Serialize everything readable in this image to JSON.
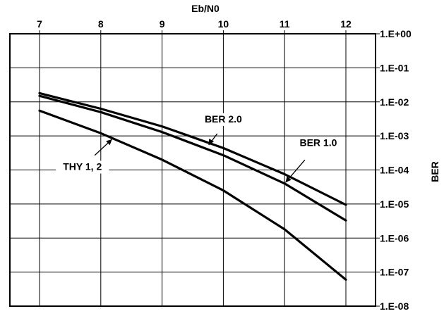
{
  "chart_data": {
    "type": "line",
    "xlabel": "Eb/N0",
    "ylabel": "BER",
    "x_ticks": [
      "7",
      "8",
      "9",
      "10",
      "11",
      "12"
    ],
    "y_ticks": [
      "1.E+00",
      "1.E-01",
      "1.E-02",
      "1.E-03",
      "1.E-04",
      "1.E-05",
      "1.E-06",
      "1.E-07",
      "1.E-08"
    ],
    "xlim": [
      7,
      12
    ],
    "ylim": [
      1e-08,
      1
    ],
    "y_scale": "log",
    "x_axis_position": "top",
    "y_axis_position": "right",
    "grid": true,
    "series": [
      {
        "name": "BER 2.0",
        "x": [
          7,
          8,
          9,
          10,
          11,
          12
        ],
        "y": [
          0.018,
          0.0063,
          0.0019,
          0.00044,
          7.5e-05,
          9.5e-06
        ]
      },
      {
        "name": "BER 1.0",
        "x": [
          7,
          8,
          9,
          10,
          11,
          12
        ],
        "y": [
          0.015,
          0.005,
          0.0013,
          0.00027,
          4e-05,
          3.3e-06
        ]
      },
      {
        "name": "THY 1, 2",
        "x": [
          7,
          8,
          9,
          10,
          11,
          12
        ],
        "y": [
          0.0055,
          0.0012,
          0.0002,
          2.5e-05,
          1.8e-06,
          6e-08
        ]
      }
    ],
    "annotations": [
      {
        "text": "BER 2.0",
        "target_series": 0,
        "anchor": {
          "x": 9.75,
          "y": 0.0005
        },
        "label_at": {
          "x": 10.0,
          "y": 0.0025
        }
      },
      {
        "text": "BER 1.0",
        "target_series": 1,
        "anchor": {
          "x": 11.0,
          "y": 4e-05
        },
        "label_at": {
          "x": 11.55,
          "y": 0.0005
        }
      },
      {
        "text": "THY 1, 2",
        "target_series": 2,
        "anchor": {
          "x": 8.2,
          "y": 0.00085
        },
        "label_at": {
          "x": 7.7,
          "y": 0.0001
        }
      }
    ]
  }
}
